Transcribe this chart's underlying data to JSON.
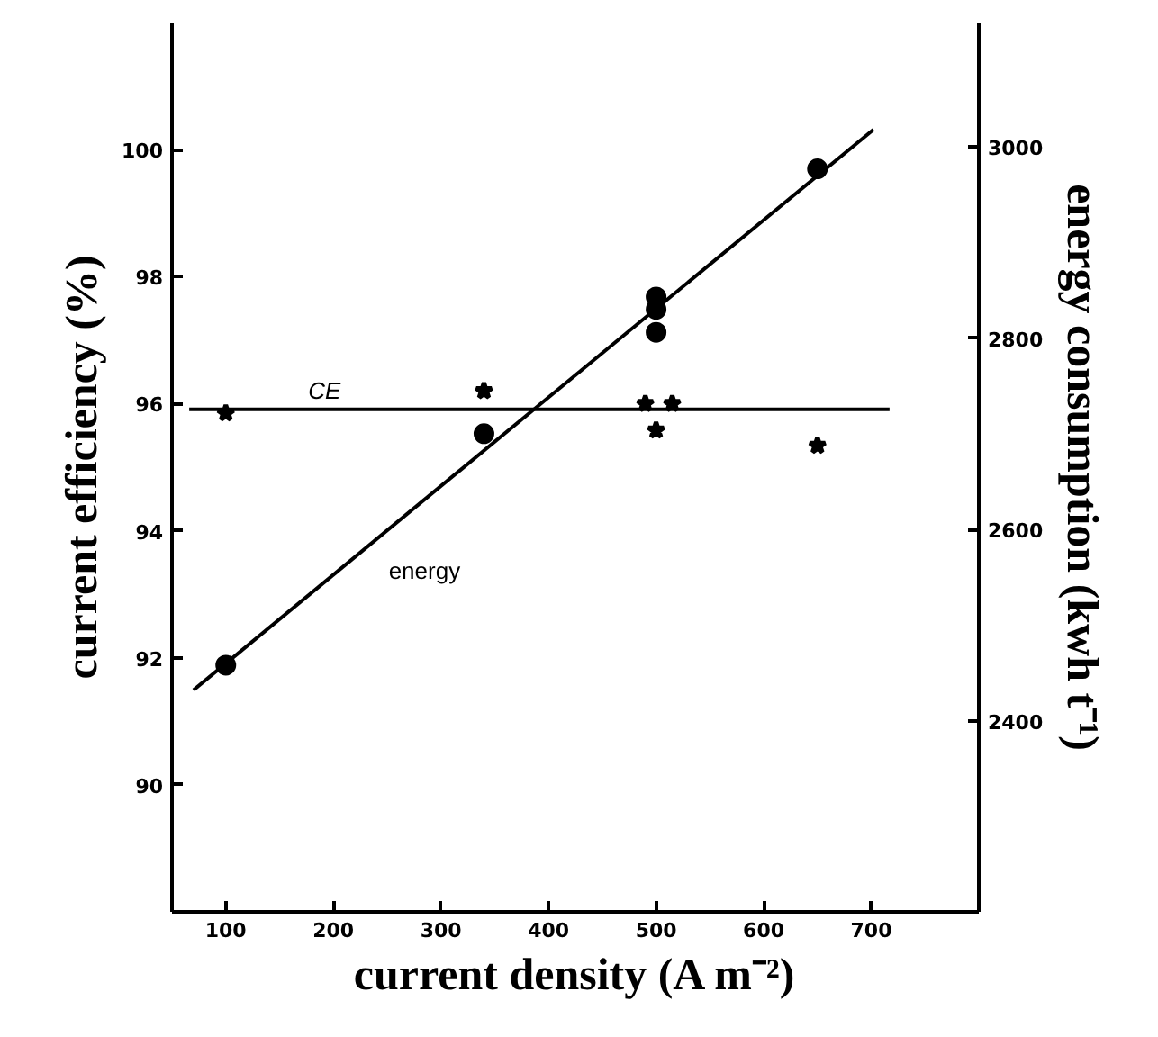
{
  "chart_data": {
    "type": "scatter",
    "xlabel": "current density (A m⁻²)",
    "ylabel": "current efficiency (%)",
    "y2label": "energy consumption (kwh t⁻¹)",
    "xlim": [
      50,
      800
    ],
    "xticks": [
      100,
      200,
      300,
      400,
      500,
      600,
      700
    ],
    "ylim": [
      88,
      102
    ],
    "yticks": [
      90,
      92,
      94,
      96,
      98,
      100
    ],
    "y2lim": [
      2200,
      3130
    ],
    "y2ticks": [
      2400,
      2600,
      2800,
      3000
    ],
    "grid": false,
    "series": [
      {
        "name": "CE",
        "type": "line",
        "color": "#000000",
        "x": [
          66,
          717
        ],
        "values": [
          95.91,
          95.91
        ]
      },
      {
        "marker": "star",
        "color": "#000000",
        "x": [
          100,
          340,
          490,
          515,
          500,
          650
        ],
        "values": [
          95.85,
          96.2,
          96.0,
          96.0,
          95.58,
          95.34
        ]
      },
      {
        "name": "energy",
        "type": "line",
        "axis": "y2",
        "color": "#000000",
        "x": [
          70,
          702
        ],
        "values": [
          2432,
          3018
        ]
      },
      {
        "marker": "circle",
        "axis": "y2",
        "color": "#000000",
        "x": [
          100,
          340,
          500,
          500,
          500,
          650
        ],
        "values": [
          2458,
          2700,
          2843,
          2830,
          2806,
          2977
        ]
      }
    ]
  }
}
